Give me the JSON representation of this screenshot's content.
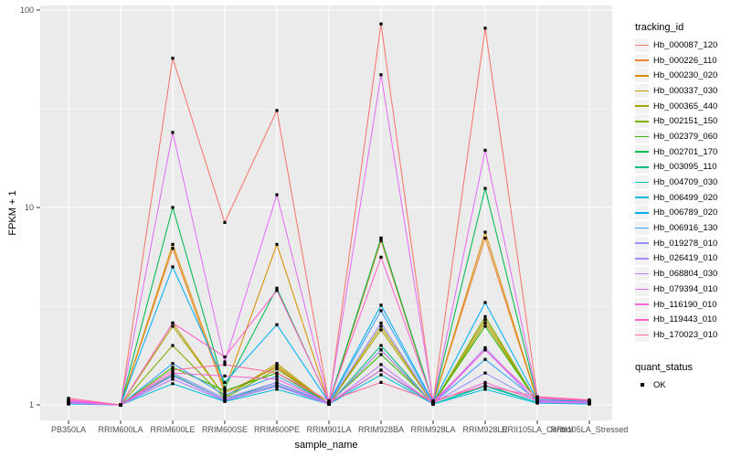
{
  "figure": {
    "panel_background": "#EBEBEB",
    "gridline_color": "#FFFFFF",
    "axis_text_color": "#4D4D4D",
    "axis_title_color": "#000000",
    "point_color": "#000000",
    "legend_key_background": "#F2F2F2"
  },
  "legend": {
    "tracking_title": "tracking_id",
    "quant_title": "quant_status",
    "quant_items": [
      {
        "label": "OK"
      }
    ]
  },
  "chart_data": {
    "type": "line",
    "title": "",
    "xlabel": "sample_name",
    "ylabel": "FPKM + 1",
    "yscale": "log10",
    "ylim": [
      1,
      107
    ],
    "yticks": [
      1,
      10,
      100
    ],
    "yminor": [
      3.162,
      31.62
    ],
    "grid": true,
    "legend_position": "right",
    "point_marker": "black-square",
    "categories": [
      "PB350LA",
      "RRIM600LA",
      "RRIM600LE",
      "RRIM600SE",
      "RRIM600PE",
      "RRIM901LA",
      "RRIM928BA",
      "RRIM928LA",
      "RRIM928LE",
      "RRII105LA_Control",
      "RRII105LA_Stressed"
    ],
    "series": [
      {
        "name": "Hb_000087_120",
        "color": "#F8766D",
        "values": [
          1.05,
          1.0,
          57,
          8.4,
          31,
          1.02,
          85,
          1.03,
          81,
          1.1,
          1.05
        ]
      },
      {
        "name": "Hb_000226_110",
        "color": "#EA8331",
        "values": [
          1.02,
          1.0,
          6.2,
          1.15,
          1.55,
          1.01,
          6.8,
          1.02,
          7.0,
          1.05,
          1.03
        ]
      },
      {
        "name": "Hb_000230_020",
        "color": "#D89000",
        "values": [
          1.03,
          1.0,
          6.5,
          1.2,
          6.5,
          1.02,
          7.0,
          1.02,
          7.5,
          1.06,
          1.03
        ]
      },
      {
        "name": "Hb_000337_030",
        "color": "#C09B00",
        "values": [
          1.02,
          1.0,
          2.6,
          1.1,
          1.62,
          1.01,
          2.5,
          1.02,
          2.7,
          1.04,
          1.02
        ]
      },
      {
        "name": "Hb_000365_440",
        "color": "#A3A500",
        "values": [
          1.02,
          1.0,
          2.5,
          1.1,
          1.58,
          1.01,
          2.4,
          1.01,
          2.6,
          1.04,
          1.02
        ]
      },
      {
        "name": "Hb_002151_150",
        "color": "#7CAE00",
        "values": [
          1.02,
          1.0,
          2.0,
          1.08,
          1.52,
          1.01,
          1.9,
          1.01,
          2.8,
          1.03,
          1.02
        ]
      },
      {
        "name": "Hb_002379_060",
        "color": "#39B600",
        "values": [
          1.03,
          1.0,
          1.55,
          1.18,
          1.45,
          1.02,
          1.8,
          1.02,
          2.5,
          1.04,
          1.02
        ]
      },
      {
        "name": "Hb_002701_170",
        "color": "#00BB4E",
        "values": [
          1.05,
          1.0,
          10.0,
          1.22,
          3.9,
          1.03,
          7.0,
          1.03,
          12.5,
          1.08,
          1.04
        ]
      },
      {
        "name": "Hb_003095_110",
        "color": "#00BF7D",
        "values": [
          1.02,
          1.0,
          1.42,
          1.06,
          1.3,
          1.01,
          2.0,
          1.01,
          1.26,
          1.03,
          1.02
        ]
      },
      {
        "name": "Hb_004709_030",
        "color": "#00C0B2",
        "values": [
          1.02,
          1.0,
          1.35,
          1.05,
          1.25,
          1.01,
          1.5,
          1.01,
          1.24,
          1.03,
          1.02
        ]
      },
      {
        "name": "Hb_006499_020",
        "color": "#00BCD8",
        "values": [
          1.01,
          1.0,
          1.28,
          1.04,
          1.2,
          1.01,
          1.42,
          1.01,
          1.2,
          1.02,
          1.01
        ]
      },
      {
        "name": "Hb_006789_020",
        "color": "#00B0F6",
        "values": [
          1.04,
          1.0,
          5.0,
          1.3,
          2.55,
          1.03,
          3.2,
          1.03,
          3.3,
          1.06,
          1.04
        ]
      },
      {
        "name": "Hb_006916_130",
        "color": "#35A2FF",
        "values": [
          1.03,
          1.0,
          1.62,
          1.12,
          1.4,
          1.02,
          3.0,
          1.02,
          1.7,
          1.05,
          1.03
        ]
      },
      {
        "name": "Hb_019278_010",
        "color": "#9590FF",
        "values": [
          1.02,
          1.0,
          1.45,
          1.08,
          1.3,
          1.02,
          2.6,
          1.02,
          1.45,
          1.04,
          1.02
        ]
      },
      {
        "name": "Hb_026419_010",
        "color": "#AC88FF",
        "values": [
          1.02,
          1.0,
          1.4,
          1.06,
          1.27,
          1.01,
          1.9,
          1.02,
          1.95,
          1.03,
          1.02
        ]
      },
      {
        "name": "Hb_068804_030",
        "color": "#C77CFF",
        "values": [
          1.02,
          1.0,
          1.35,
          1.05,
          1.24,
          1.01,
          1.6,
          1.01,
          1.9,
          1.03,
          1.02
        ]
      },
      {
        "name": "Hb_079394_010",
        "color": "#E36EF6",
        "values": [
          1.05,
          1.0,
          24,
          1.65,
          11.6,
          1.03,
          47,
          1.04,
          19.5,
          1.09,
          1.05
        ]
      },
      {
        "name": "Hb_116190_010",
        "color": "#F564D7",
        "values": [
          1.04,
          1.0,
          1.45,
          1.4,
          1.35,
          1.02,
          1.5,
          1.03,
          1.3,
          1.05,
          1.03
        ]
      },
      {
        "name": "Hb_119443_010",
        "color": "#FF61C9",
        "values": [
          1.06,
          1.0,
          2.6,
          1.75,
          3.8,
          1.04,
          5.6,
          1.04,
          1.9,
          1.08,
          1.05
        ]
      },
      {
        "name": "Hb_170023_010",
        "color": "#FF689E",
        "values": [
          1.08,
          1.0,
          1.5,
          1.6,
          1.45,
          1.05,
          1.3,
          1.05,
          1.25,
          1.1,
          1.06
        ]
      }
    ]
  }
}
